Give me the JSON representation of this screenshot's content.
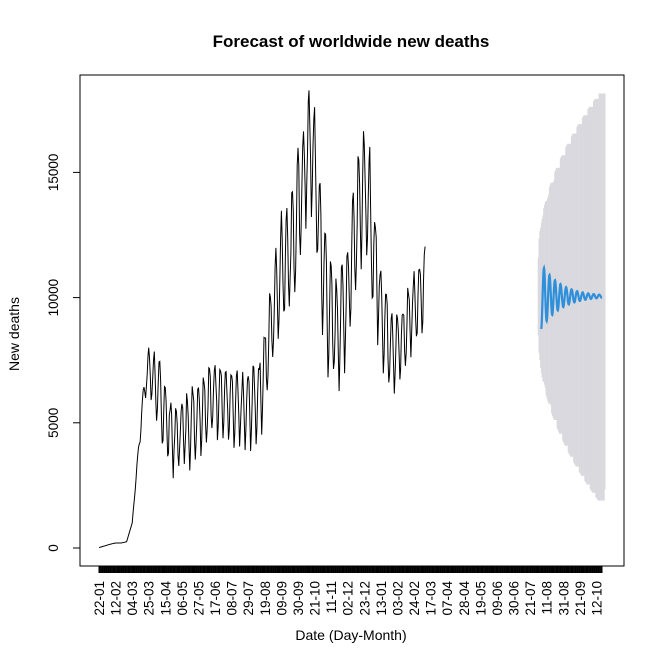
{
  "chart_data": {
    "type": "line",
    "title": "Forecast of worldwide new deaths",
    "xlabel": "Date (Day-Month)",
    "ylabel": "New deaths",
    "y_ticks": [
      0,
      5000,
      10000,
      15000
    ],
    "x_tick_labels": [
      "22-01",
      "12-02",
      "04-03",
      "25-03",
      "15-04",
      "06-05",
      "27-05",
      "17-06",
      "08-07",
      "29-07",
      "19-08",
      "09-09",
      "30-09",
      "21-10",
      "11-11",
      "02-12",
      "23-12",
      "13-01",
      "03-02",
      "24-02",
      "17-03",
      "07-04",
      "28-04",
      "19-05",
      "09-06",
      "30-06",
      "21-07",
      "11-08",
      "31-08",
      "21-09",
      "12-10"
    ],
    "x_tick_step_days": 21,
    "x_range_days": [
      0,
      637
    ],
    "ylim": [
      -500,
      18500
    ],
    "grid": false,
    "series": [
      {
        "role": "observed",
        "color": "#000000",
        "start_day": 0,
        "step_days": 7,
        "values": [
          20,
          80,
          150,
          200,
          200,
          250,
          1000,
          3500,
          6000,
          7200,
          6500,
          5800,
          5200,
          4500,
          4200,
          4600,
          4700,
          5000,
          5200,
          5500,
          5800,
          6000,
          6000,
          5700,
          5500,
          5400,
          5300,
          5500,
          5700,
          6000,
          7000,
          8500,
          10000,
          11000,
          11500,
          12000,
          13000,
          14500,
          16000,
          15000,
          12000,
          10000,
          9000,
          8500,
          9000,
          10000,
          12000,
          13500,
          14000,
          13000,
          11000,
          9500,
          8500,
          8000,
          7800,
          8200,
          9000,
          9500,
          10000,
          10500
        ],
        "weekly_amplitude": [
          0,
          0,
          0,
          0,
          0,
          0,
          0,
          200,
          400,
          800,
          1200,
          1400,
          1400,
          1400,
          1200,
          1400,
          1400,
          1400,
          1400,
          1400,
          1400,
          1400,
          1400,
          1400,
          1400,
          1400,
          1400,
          1400,
          1400,
          1500,
          1600,
          1800,
          2000,
          2200,
          2200,
          2500,
          2500,
          2500,
          2500,
          2500,
          2500,
          2500,
          2000,
          2000,
          2000,
          2000,
          2200,
          2500,
          2500,
          2500,
          2000,
          1800,
          1600,
          1500,
          1400,
          1300,
          1400,
          1400,
          1500,
          1500
        ]
      },
      {
        "role": "forecast",
        "color": "#2e8fdb",
        "start_day": 560,
        "end_day": 637,
        "center": 10050,
        "initial_amplitude": 1300,
        "period_days": 7,
        "interval_low": [
          8500,
          2100
        ],
        "interval_high": [
          11600,
          17900
        ],
        "interval_color": "#d9d9de"
      }
    ]
  }
}
